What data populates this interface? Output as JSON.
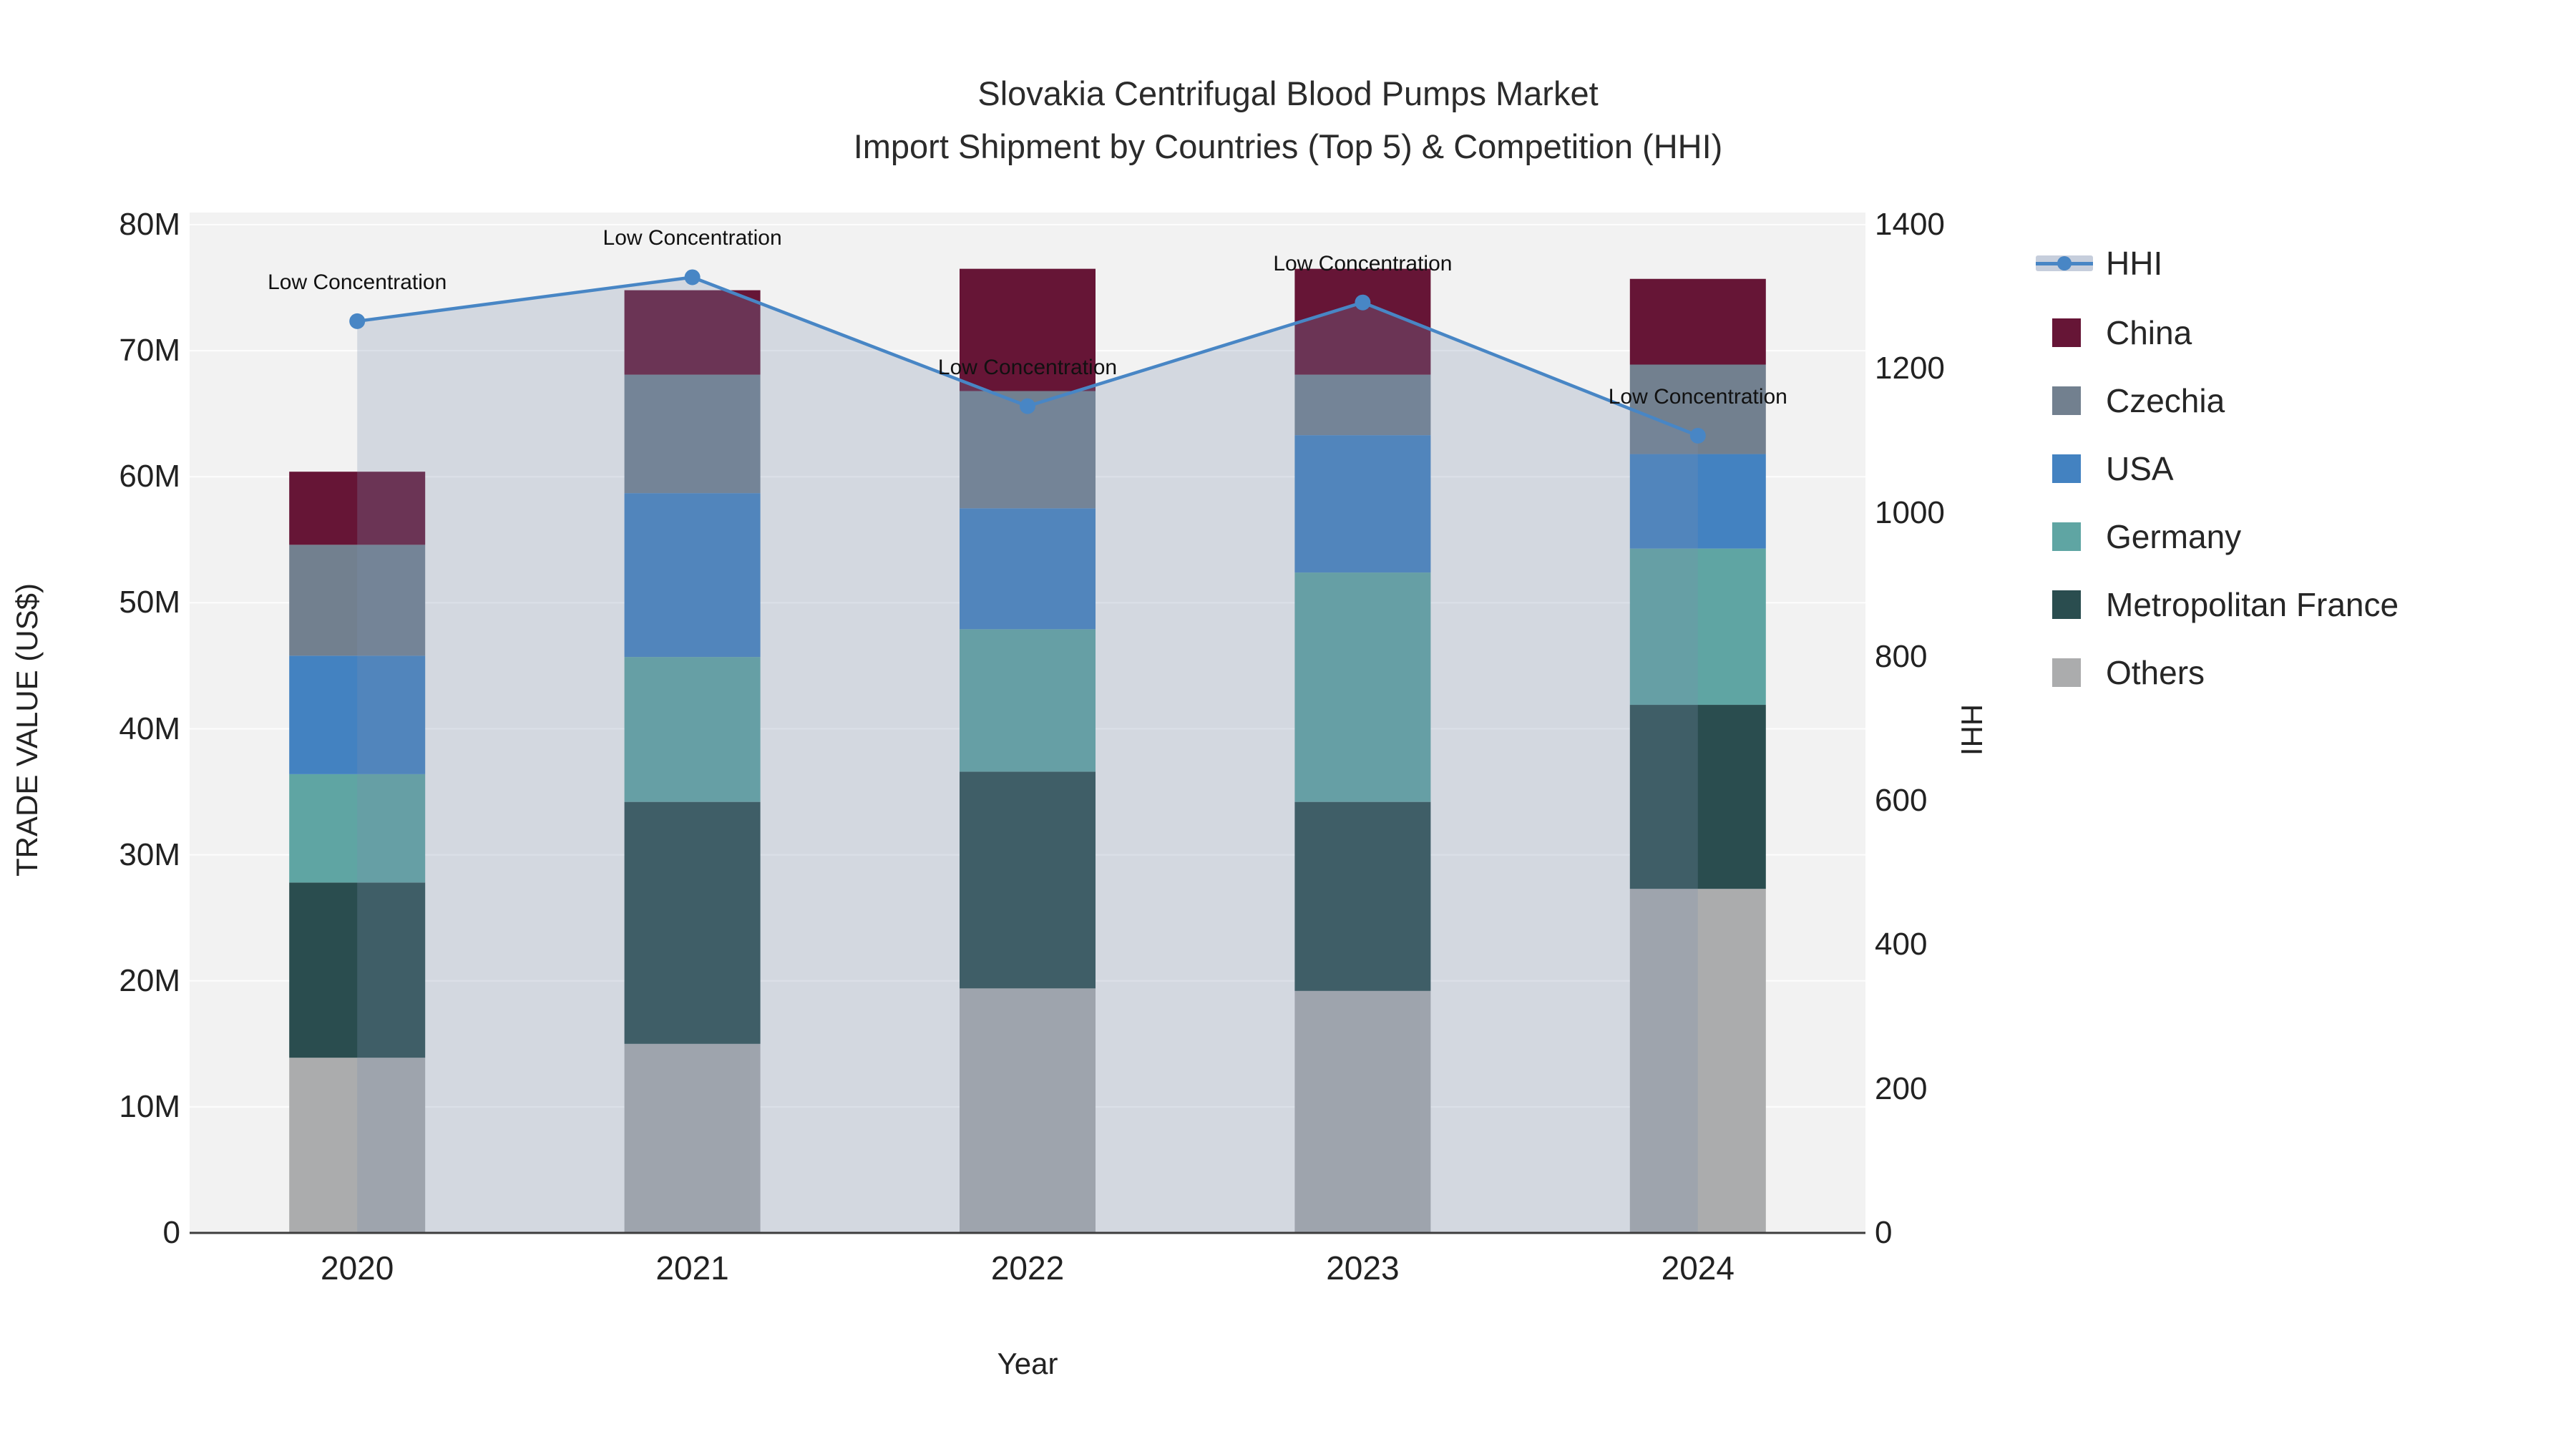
{
  "title": {
    "line1": "Slovakia Centrifugal Blood Pumps Market",
    "line2": "Import Shipment by Countries (Top 5) & Competition (HHI)"
  },
  "axes": {
    "left": {
      "title": "TRADE VALUE (US$)",
      "ticks": [
        "0",
        "10M",
        "20M",
        "30M",
        "40M",
        "50M",
        "60M",
        "70M",
        "80M"
      ],
      "tick_values": [
        0,
        10,
        20,
        30,
        40,
        50,
        60,
        70,
        80
      ],
      "max": 80
    },
    "right": {
      "title": "HHI",
      "ticks": [
        "0",
        "200",
        "400",
        "600",
        "800",
        "1000",
        "1200",
        "1400"
      ],
      "tick_values": [
        0,
        200,
        400,
        600,
        800,
        1000,
        1200,
        1400
      ],
      "max": 1400
    },
    "x": {
      "title": "Year",
      "categories": [
        "2020",
        "2021",
        "2022",
        "2023",
        "2024"
      ]
    }
  },
  "legend": [
    {
      "label": "HHI",
      "type": "line",
      "color": "#4886c5"
    },
    {
      "label": "China",
      "type": "swatch",
      "color": "#661536"
    },
    {
      "label": "Czechia",
      "type": "swatch",
      "color": "#72808f"
    },
    {
      "label": "USA",
      "type": "swatch",
      "color": "#4382c1"
    },
    {
      "label": "Germany",
      "type": "swatch",
      "color": "#5fa5a3"
    },
    {
      "label": "Metropolitan France",
      "type": "swatch",
      "color": "#2a4d4f"
    },
    {
      "label": "Others",
      "type": "swatch",
      "color": "#abacad"
    }
  ],
  "annotation_text": "Low Concentration",
  "colors": {
    "plot_bg": "#f2f2f2",
    "gridline": "#ffffff",
    "axis_line": "#3d3d3d",
    "hhi_line": "#4886c5",
    "hhi_fill": "rgba(125,143,173,0.26)"
  },
  "chart_data": {
    "type": "bar",
    "subtype": "stacked-bars-with-line-overlay",
    "categories": [
      "2020",
      "2021",
      "2022",
      "2023",
      "2024"
    ],
    "bar_value_unit": "million US$",
    "stack_order_bottom_to_top": [
      "Others",
      "Metropolitan France",
      "Germany",
      "USA",
      "Czechia",
      "China"
    ],
    "series": [
      {
        "name": "Others",
        "color": "#abacad",
        "values": [
          13.9,
          15.0,
          19.4,
          19.2,
          27.3
        ]
      },
      {
        "name": "Metropolitan France",
        "color": "#2a4d4f",
        "values": [
          13.9,
          19.2,
          17.2,
          15.0,
          14.6
        ]
      },
      {
        "name": "Germany",
        "color": "#5fa5a3",
        "values": [
          8.6,
          11.5,
          11.3,
          18.2,
          12.4
        ]
      },
      {
        "name": "USA",
        "color": "#4382c1",
        "values": [
          9.4,
          13.0,
          9.6,
          10.9,
          7.5
        ]
      },
      {
        "name": "Czechia",
        "color": "#72808f",
        "values": [
          8.8,
          9.4,
          9.3,
          4.8,
          7.1
        ]
      },
      {
        "name": "China",
        "color": "#661536",
        "values": [
          5.8,
          6.7,
          9.7,
          8.4,
          6.8
        ]
      }
    ],
    "bar_totals": [
      60.4,
      74.8,
      76.5,
      76.5,
      75.7
    ],
    "line": {
      "name": "HHI",
      "axis": "right",
      "color": "#4886c5",
      "fill": "rgba(125,143,173,0.26)",
      "values": [
        1266,
        1327,
        1148,
        1292,
        1107
      ],
      "point_annotations": [
        "Low Concentration",
        "Low Concentration",
        "Low Concentration",
        "Low Concentration",
        "Low Concentration"
      ]
    },
    "ylim_left": [
      0,
      80
    ],
    "ylim_right": [
      0,
      1400
    ],
    "grid": true,
    "legend_position": "right"
  }
}
